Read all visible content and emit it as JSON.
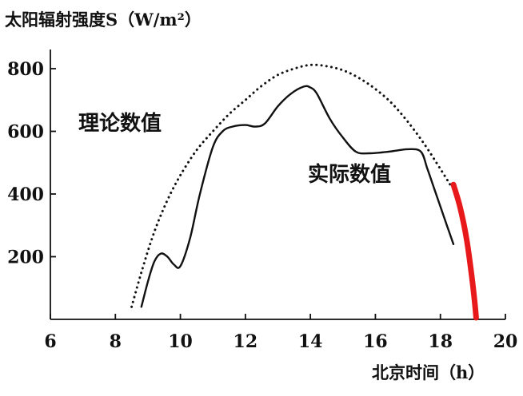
{
  "chart_data": {
    "type": "line",
    "title": "",
    "ylabel": "太阳辐射强度S（W/m²）",
    "xlabel": "北京时间（h）",
    "xlim": [
      6,
      20
    ],
    "ylim": [
      0,
      880
    ],
    "xticks": [
      6,
      8,
      10,
      12,
      14,
      16,
      18,
      20
    ],
    "yticks": [
      200,
      400,
      600,
      800
    ],
    "annotations": [
      "理论数值",
      "实际数值"
    ],
    "series": [
      {
        "name": "理论数值",
        "style": "dotted",
        "color": "#111111",
        "x": [
          8.5,
          8.8,
          9.2,
          9.6,
          10.0,
          10.5,
          11.0,
          11.5,
          12.0,
          12.5,
          13.0,
          13.5,
          14.0,
          14.5,
          15.0,
          15.5,
          16.0,
          16.5,
          17.0,
          17.5,
          18.0,
          18.3
        ],
        "y": [
          40,
          150,
          280,
          380,
          460,
          540,
          600,
          655,
          700,
          745,
          780,
          800,
          812,
          808,
          795,
          770,
          735,
          690,
          630,
          560,
          480,
          430
        ]
      },
      {
        "name": "理论数值（延伸）",
        "style": "solid",
        "color": "#e8191b",
        "x": [
          18.4,
          18.6,
          18.8,
          18.95,
          19.05,
          19.1
        ],
        "y": [
          430,
          360,
          260,
          150,
          60,
          5
        ]
      },
      {
        "name": "实际数值",
        "style": "solid",
        "color": "#111111",
        "x": [
          8.8,
          9.0,
          9.2,
          9.4,
          9.6,
          9.8,
          10.0,
          10.3,
          10.6,
          11.0,
          11.3,
          11.6,
          12.0,
          12.3,
          12.6,
          13.0,
          13.4,
          13.8,
          14.0,
          14.2,
          14.6,
          15.0,
          15.4,
          15.8,
          16.4,
          17.0,
          17.4,
          17.6,
          17.8,
          18.0,
          18.2,
          18.4
        ],
        "y": [
          40,
          120,
          185,
          210,
          200,
          175,
          170,
          260,
          400,
          550,
          600,
          615,
          620,
          615,
          625,
          680,
          720,
          743,
          740,
          720,
          640,
          580,
          535,
          530,
          535,
          543,
          535,
          480,
          420,
          360,
          300,
          240
        ]
      }
    ],
    "grid": false,
    "legend": "none"
  }
}
